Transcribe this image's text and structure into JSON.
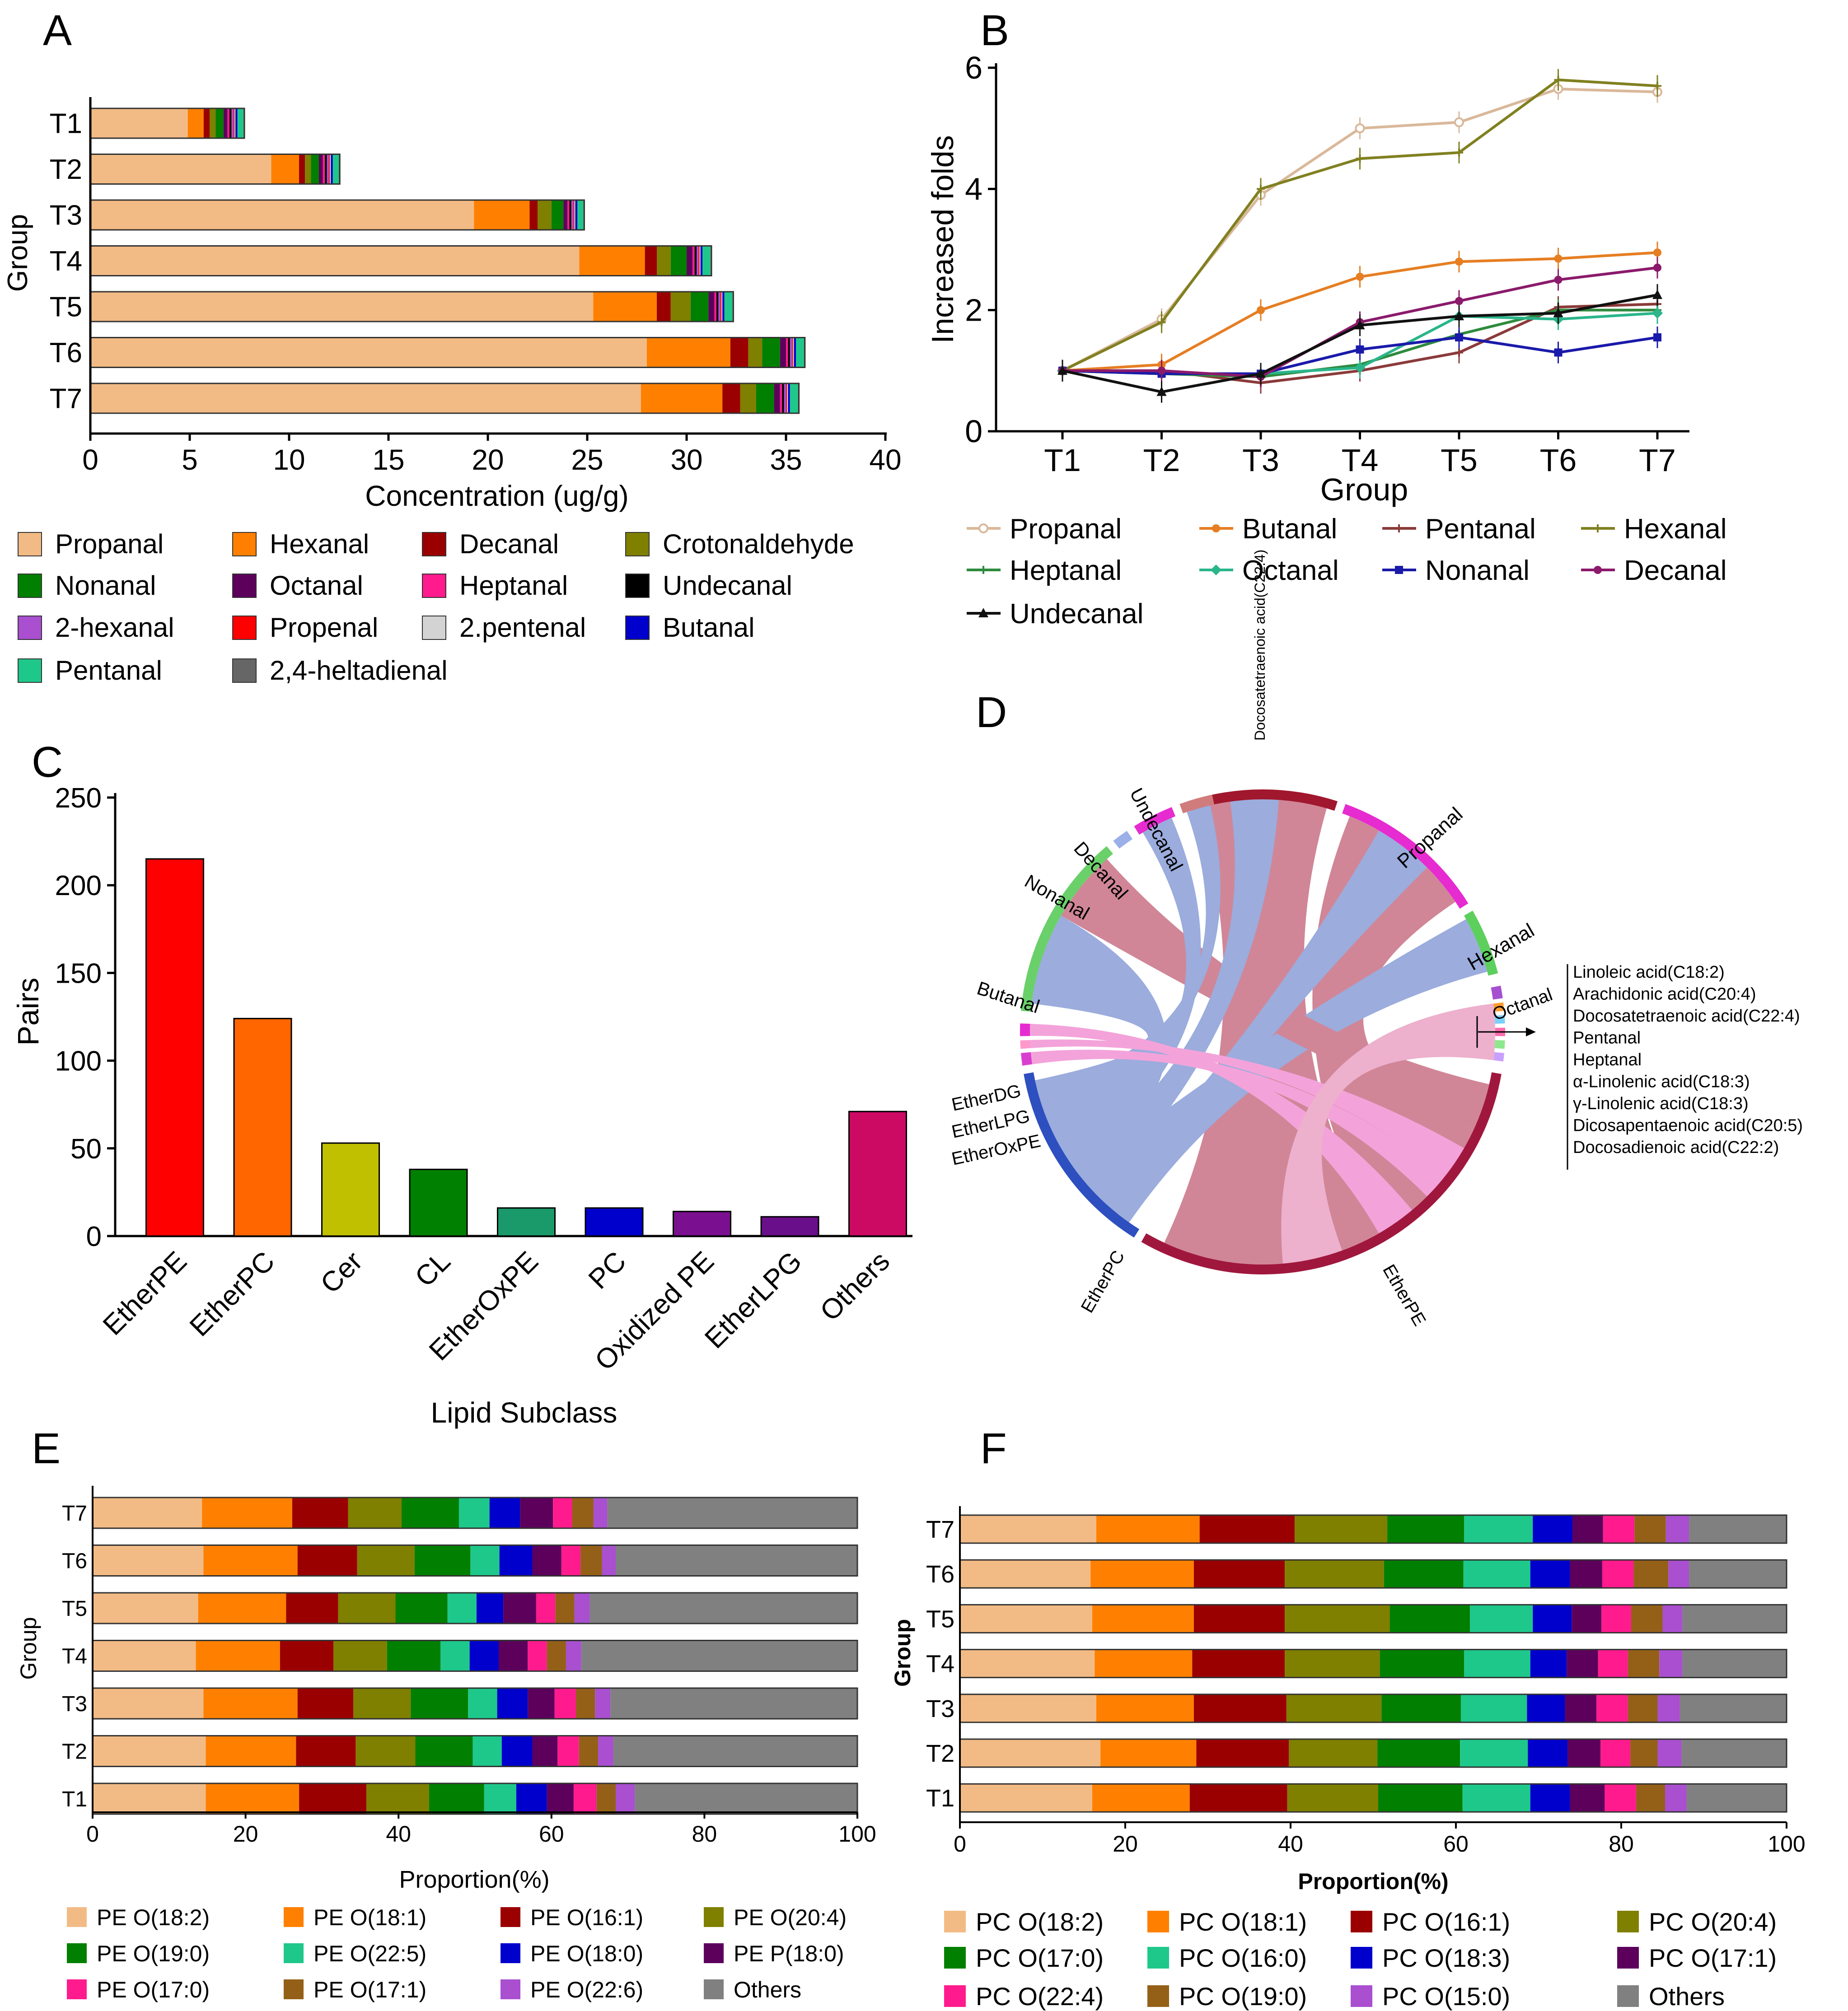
{
  "panel_labels": {
    "a": "A",
    "b": "B",
    "c": "C",
    "d": "D",
    "e": "E",
    "f": "F"
  },
  "chart_data": [
    {
      "panel": "A",
      "type": "bar",
      "orientation": "horizontal",
      "stacked": true,
      "xlabel": "Concentration (ug/g)",
      "ylabel": "Group",
      "xlim": [
        0,
        40
      ],
      "xticks": [
        0,
        5,
        10,
        15,
        20,
        25,
        30,
        35,
        40
      ],
      "categories": [
        "T1",
        "T2",
        "T3",
        "T4",
        "T5",
        "T6",
        "T7"
      ],
      "legend": [
        "Propanal",
        "Hexanal",
        "Decanal",
        "Crotonaldehyde",
        "Nonanal",
        "Octanal",
        "Heptanal",
        "Undecanal",
        "2-hexanal",
        "Propenal",
        "2.pentenal",
        "Butanal",
        "Pentanal",
        "2,4-heltadienal"
      ],
      "series": [
        {
          "name": "Propanal",
          "color": "#f2bb85",
          "values": [
            4.9,
            9.1,
            19.3,
            24.6,
            25.3,
            28.0,
            27.7
          ]
        },
        {
          "name": "Hexanal",
          "color": "#ff8000",
          "values": [
            0.8,
            1.4,
            2.8,
            3.3,
            3.2,
            4.2,
            4.1
          ]
        },
        {
          "name": "Decanal",
          "color": "#9b0000",
          "values": [
            0.3,
            0.3,
            0.4,
            0.6,
            0.7,
            0.9,
            0.9
          ]
        },
        {
          "name": "Crotonaldehyde",
          "color": "#7f7f00",
          "values": [
            0.3,
            0.3,
            0.7,
            0.7,
            1.0,
            0.7,
            0.8
          ]
        },
        {
          "name": "Nonanal",
          "color": "#007f00",
          "values": [
            0.4,
            0.4,
            0.6,
            0.8,
            0.9,
            0.9,
            0.9
          ]
        },
        {
          "name": "Octanal",
          "color": "#5c005c",
          "values": [
            0.2,
            0.2,
            0.2,
            0.3,
            0.3,
            0.3,
            0.3
          ]
        },
        {
          "name": "Heptanal",
          "color": "#ff1b8d",
          "values": [
            0.1,
            0.1,
            0.1,
            0.1,
            0.1,
            0.1,
            0.1
          ]
        },
        {
          "name": "Undecanal",
          "color": "#000000",
          "values": [
            0.1,
            0.1,
            0.1,
            0.1,
            0.1,
            0.1,
            0.1
          ]
        },
        {
          "name": "2-hexanal",
          "color": "#a94fd0",
          "values": [
            0.1,
            0.1,
            0.1,
            0.1,
            0.1,
            0.1,
            0.1
          ]
        },
        {
          "name": "Propenal",
          "color": "#ff0000",
          "values": [
            0.05,
            0.05,
            0.05,
            0.05,
            0.05,
            0.05,
            0.05
          ]
        },
        {
          "name": "2.pentenal",
          "color": "#d3d3d3",
          "values": [
            0.05,
            0.05,
            0.05,
            0.05,
            0.05,
            0.05,
            0.05
          ]
        },
        {
          "name": "Butanal",
          "color": "#0000cc",
          "values": [
            0.1,
            0.1,
            0.1,
            0.1,
            0.1,
            0.1,
            0.1
          ]
        },
        {
          "name": "Pentanal",
          "color": "#1ec88a",
          "values": [
            0.3,
            0.3,
            0.3,
            0.4,
            0.4,
            0.4,
            0.4
          ]
        },
        {
          "name": "2,4-heltadienal",
          "color": "#666666",
          "values": [
            0.05,
            0.05,
            0.05,
            0.05,
            0.05,
            0.05,
            0.05
          ]
        }
      ]
    },
    {
      "panel": "B",
      "type": "line",
      "xlabel": "Group",
      "ylabel": "Increased folds",
      "ylim": [
        0,
        6
      ],
      "yticks": [
        0,
        2,
        4,
        6
      ],
      "x": [
        "T1",
        "T2",
        "T3",
        "T4",
        "T5",
        "T6",
        "T7"
      ],
      "series": [
        {
          "name": "Propanal",
          "color": "#d9b89a",
          "marker": "circle-open",
          "values": [
            1.0,
            1.85,
            3.9,
            5.0,
            5.1,
            5.65,
            5.6
          ]
        },
        {
          "name": "Butanal",
          "color": "#e67e22",
          "marker": "circle",
          "values": [
            1.0,
            1.1,
            2.0,
            2.55,
            2.8,
            2.85,
            2.95
          ]
        },
        {
          "name": "Pentanal",
          "color": "#8b3a3a",
          "marker": "plus",
          "values": [
            1.0,
            1.0,
            0.8,
            1.0,
            1.3,
            2.05,
            2.1
          ]
        },
        {
          "name": "Hexanal",
          "color": "#808020",
          "marker": "plus",
          "values": [
            1.0,
            1.8,
            4.0,
            4.5,
            4.6,
            5.8,
            5.7
          ]
        },
        {
          "name": "Heptanal",
          "color": "#2e8b3e",
          "marker": "plus",
          "values": [
            1.0,
            0.95,
            0.9,
            1.1,
            1.6,
            2.0,
            2.0
          ]
        },
        {
          "name": "Octanal",
          "color": "#2ab58a",
          "marker": "diamond",
          "values": [
            1.0,
            0.95,
            0.95,
            1.05,
            1.9,
            1.85,
            1.95
          ]
        },
        {
          "name": "Nonanal",
          "color": "#1a1aaa",
          "marker": "square",
          "values": [
            1.0,
            0.95,
            0.95,
            1.35,
            1.55,
            1.3,
            1.55
          ]
        },
        {
          "name": "Decanal",
          "color": "#8b1a6b",
          "marker": "circle",
          "values": [
            1.0,
            1.0,
            0.9,
            1.8,
            2.15,
            2.5,
            2.7
          ]
        },
        {
          "name": "Undecanal",
          "color": "#111111",
          "marker": "triangle",
          "values": [
            1.0,
            0.65,
            0.95,
            1.75,
            1.9,
            1.95,
            2.25
          ]
        }
      ]
    },
    {
      "panel": "C",
      "type": "bar",
      "xlabel": "Lipid Subclass",
      "ylabel": "Pairs",
      "ylim": [
        0,
        250
      ],
      "yticks": [
        0,
        50,
        100,
        150,
        200,
        250
      ],
      "categories": [
        "EtherPE",
        "EtherPC",
        "Cer",
        "CL",
        "EtherOxPE",
        "PC",
        "Oxidized PE",
        "EtherLPG",
        "Others"
      ],
      "values": [
        215,
        124,
        53,
        38,
        16,
        16,
        14,
        11,
        71
      ],
      "colors": [
        "#ff0000",
        "#ff6600",
        "#c0c000",
        "#008000",
        "#1a9a6a",
        "#0000cc",
        "#7a108f",
        "#6a0f8a",
        "#cc0a64"
      ]
    },
    {
      "panel": "D",
      "type": "chord",
      "sectors": [
        "Docosatetraenoic acid(C22:4)",
        "Propanal",
        "Hexanal",
        "Octanal",
        "EtherPE",
        "EtherPC",
        "EtherOxPE",
        "EtherLPG",
        "EtherDG",
        "Butanal",
        "Nonanal",
        "Decanal",
        "Undecanal"
      ],
      "callout_label": [
        "Linoleic acid(C18:2)",
        "Arachidonic acid(C20:4)",
        "Docosatetraenoic acid(C22:4)",
        "Pentanal",
        "Heptanal",
        "α-Linolenic acid(C18:3)",
        "γ-Linolenic acid(C18:3)",
        "Dicosapentaenoic acid(C20:5)",
        "Docosadienoic acid(C22:2)"
      ]
    },
    {
      "panel": "E",
      "type": "bar",
      "orientation": "horizontal",
      "stacked": true,
      "percent": true,
      "xlabel": "Proportion(%)",
      "ylabel": "Group",
      "xlim": [
        0,
        100
      ],
      "xticks": [
        0,
        20,
        40,
        60,
        80,
        100
      ],
      "categories": [
        "T1",
        "T2",
        "T3",
        "T4",
        "T5",
        "T6",
        "T7"
      ],
      "series": [
        {
          "name": "PE O(18:2)",
          "color": "#f2bb85",
          "values": [
            14.8,
            14.8,
            14.5,
            13.5,
            13.8,
            14.5,
            14.3
          ]
        },
        {
          "name": "PE O(18:1)",
          "color": "#ff8000",
          "values": [
            12.2,
            11.8,
            12.3,
            11.0,
            11.5,
            12.3,
            11.8
          ]
        },
        {
          "name": "PE O(16:1)",
          "color": "#9b0000",
          "values": [
            8.8,
            7.8,
            7.3,
            7.0,
            6.8,
            7.8,
            7.3
          ]
        },
        {
          "name": "PE O(20:4)",
          "color": "#7f7f00",
          "values": [
            8.2,
            7.8,
            7.5,
            7.0,
            7.5,
            7.5,
            7.0
          ]
        },
        {
          "name": "PE O(19:0)",
          "color": "#007f00",
          "values": [
            7.2,
            7.5,
            7.5,
            7.0,
            6.8,
            7.3,
            7.5
          ]
        },
        {
          "name": "PE O(22:5)",
          "color": "#1ec88a",
          "values": [
            4.2,
            3.8,
            3.8,
            3.8,
            3.8,
            3.8,
            4.0
          ]
        },
        {
          "name": "PE O(18:0)",
          "color": "#0000cc",
          "values": [
            4.0,
            4.0,
            4.0,
            3.8,
            3.5,
            4.3,
            4.0
          ]
        },
        {
          "name": "PE P(18:0)",
          "color": "#5c005c",
          "values": [
            3.5,
            3.3,
            3.5,
            3.8,
            4.3,
            3.8,
            4.3
          ]
        },
        {
          "name": "PE O(17:0)",
          "color": "#ff1b8d",
          "values": [
            3.0,
            2.8,
            2.8,
            2.5,
            2.5,
            2.5,
            2.5
          ]
        },
        {
          "name": "PE O(17:1)",
          "color": "#946018",
          "values": [
            2.5,
            2.5,
            2.5,
            2.5,
            2.5,
            2.8,
            2.8
          ]
        },
        {
          "name": "PE O(22:6)",
          "color": "#a94fd0",
          "values": [
            2.5,
            2.0,
            2.0,
            2.0,
            2.0,
            1.8,
            1.8
          ]
        },
        {
          "name": "Others",
          "color": "#808080",
          "values": [
            29.1,
            31.9,
            32.3,
            36.1,
            35.0,
            31.6,
            32.7
          ]
        }
      ]
    },
    {
      "panel": "F",
      "type": "bar",
      "orientation": "horizontal",
      "stacked": true,
      "percent": true,
      "xlabel": "Proportion(%)",
      "ylabel": "Group",
      "xlim": [
        0,
        100
      ],
      "xticks": [
        0,
        20,
        40,
        60,
        80,
        100
      ],
      "categories": [
        "T1",
        "T2",
        "T3",
        "T4",
        "T5",
        "T6",
        "T7"
      ],
      "series": [
        {
          "name": "PC O(18:2)",
          "color": "#f2bb85",
          "values": [
            16.0,
            17.0,
            16.5,
            16.3,
            16.0,
            15.8,
            16.5
          ]
        },
        {
          "name": "PC O(18:1)",
          "color": "#ff8000",
          "values": [
            11.8,
            11.6,
            11.8,
            11.8,
            12.3,
            12.5,
            12.5
          ]
        },
        {
          "name": "PC O(16:1)",
          "color": "#9b0000",
          "values": [
            11.8,
            11.2,
            11.2,
            11.2,
            11.0,
            11.0,
            11.5
          ]
        },
        {
          "name": "PC O(20:4)",
          "color": "#7f7f00",
          "values": [
            11.0,
            10.7,
            11.5,
            11.5,
            12.7,
            12.0,
            11.2
          ]
        },
        {
          "name": "PC O(17:0)",
          "color": "#007f00",
          "values": [
            10.2,
            10.0,
            9.6,
            10.2,
            9.7,
            9.6,
            9.3
          ]
        },
        {
          "name": "PC O(16:0)",
          "color": "#1ec88a",
          "values": [
            8.2,
            8.2,
            8.0,
            8.0,
            7.6,
            8.1,
            8.3
          ]
        },
        {
          "name": "PC O(18:3)",
          "color": "#0000cc",
          "values": [
            4.8,
            4.8,
            4.6,
            4.4,
            4.7,
            4.8,
            4.8
          ]
        },
        {
          "name": "PC O(17:1)",
          "color": "#5c005c",
          "values": [
            4.2,
            4.0,
            3.8,
            3.8,
            3.6,
            3.9,
            3.7
          ]
        },
        {
          "name": "PC O(22:4)",
          "color": "#ff1b8d",
          "values": [
            3.8,
            3.6,
            3.8,
            3.6,
            3.6,
            3.8,
            3.8
          ]
        },
        {
          "name": "PC O(19:0)",
          "color": "#946018",
          "values": [
            3.5,
            3.3,
            3.6,
            3.8,
            3.8,
            4.2,
            3.8
          ]
        },
        {
          "name": "PC O(15:0)",
          "color": "#a94fd0",
          "values": [
            2.6,
            2.9,
            2.7,
            2.8,
            2.4,
            2.5,
            2.8
          ]
        },
        {
          "name": "Others",
          "color": "#808080",
          "values": [
            12.1,
            12.7,
            12.9,
            12.6,
            12.6,
            11.8,
            11.8
          ]
        }
      ]
    }
  ]
}
